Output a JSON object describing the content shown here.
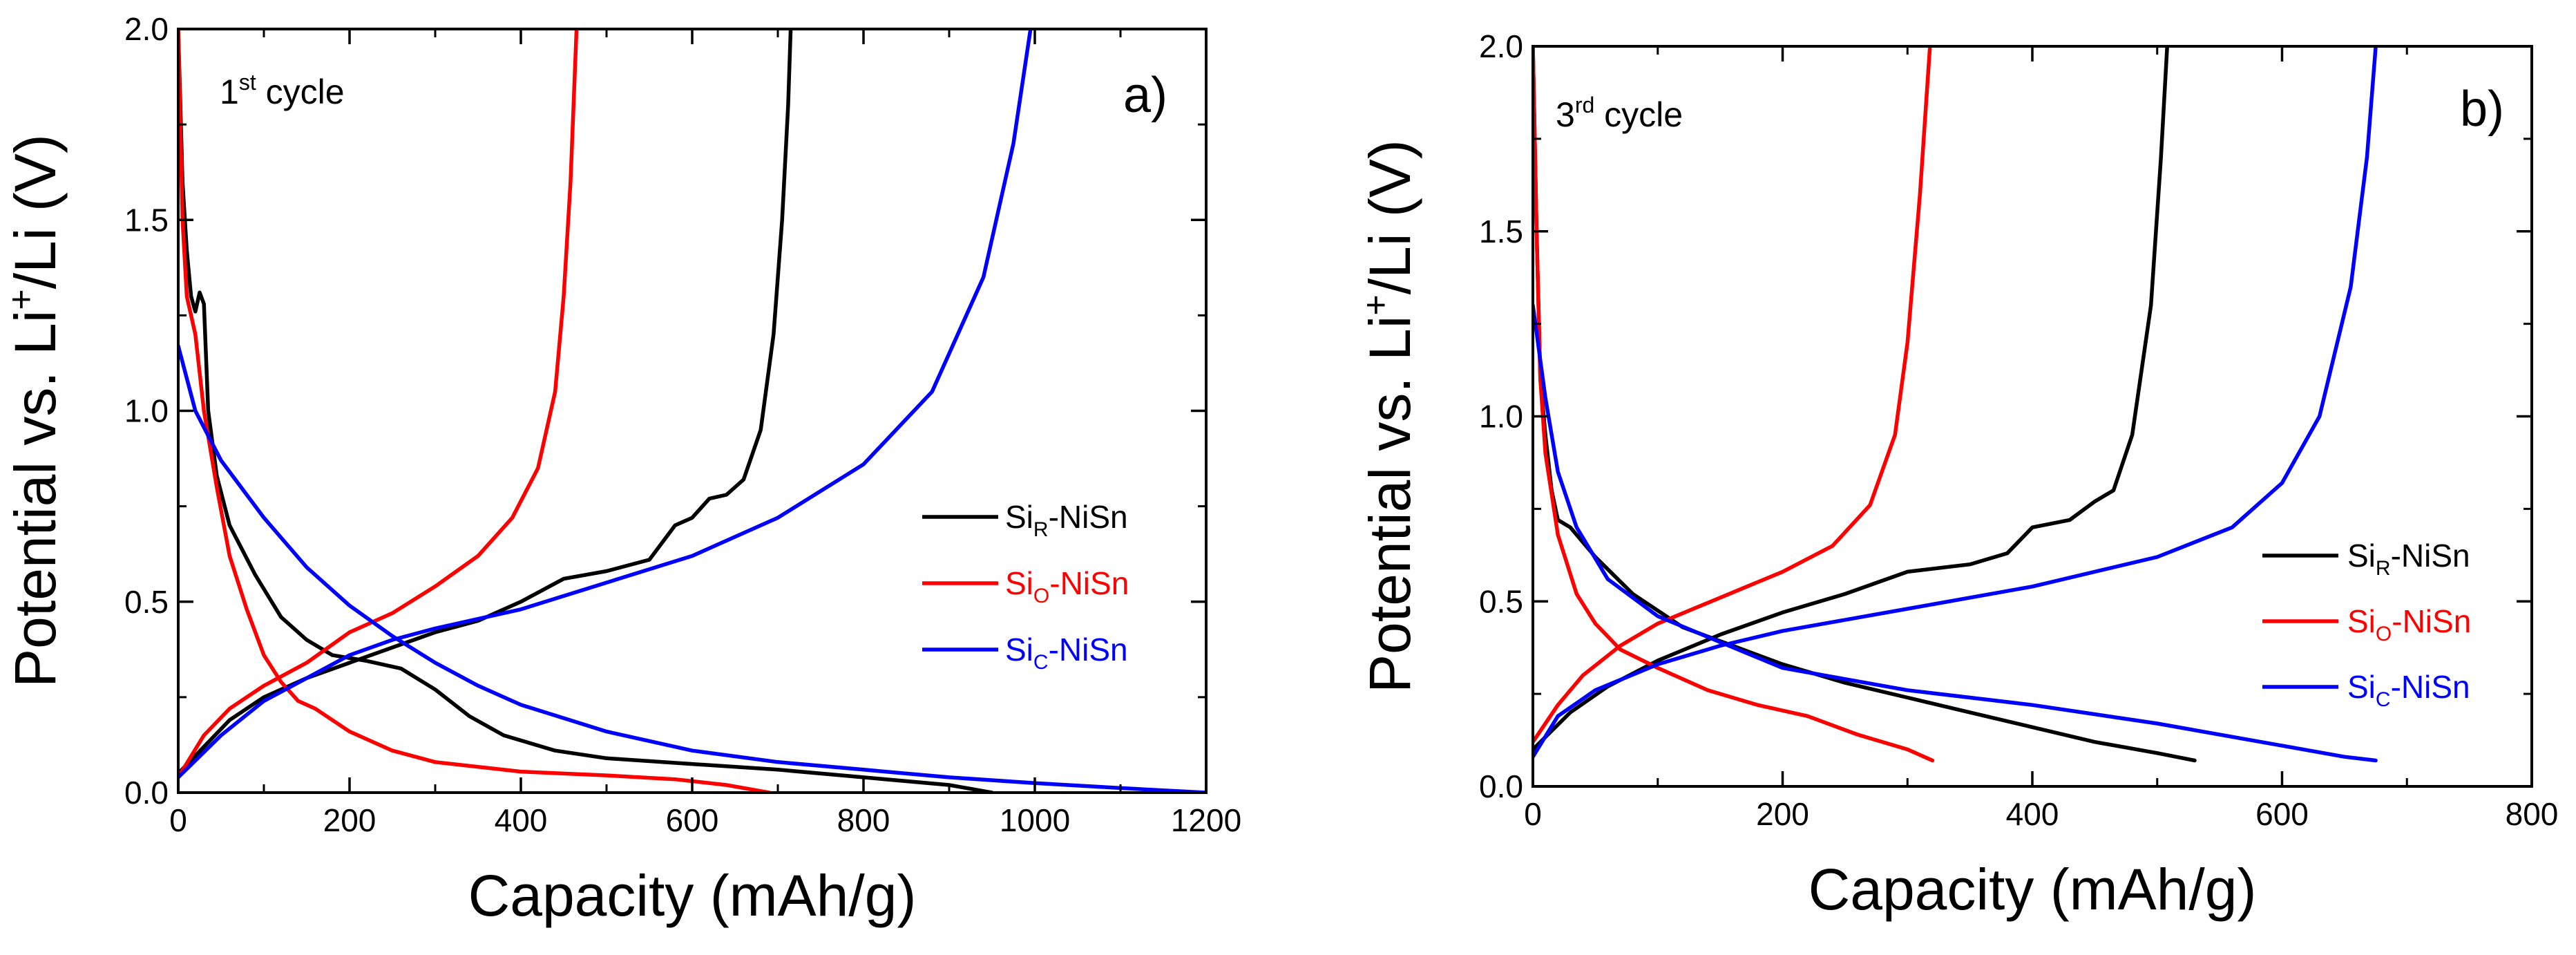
{
  "chart_data": [
    {
      "type": "line",
      "panel_label": "a)",
      "cycle_label": {
        "base": "1",
        "sup": "st",
        "rest": " cycle"
      },
      "xlabel": "Capacity (mAh/g)",
      "ylabel": {
        "pre": "Potential vs. Li",
        "sup": "+",
        "post": "/Li (V)"
      },
      "xlim": [
        0,
        1200
      ],
      "ylim": [
        0,
        2.0
      ],
      "xticks": [
        0,
        200,
        400,
        600,
        800,
        1000,
        1200
      ],
      "yticks": [
        0.0,
        0.5,
        1.0,
        1.5,
        2.0
      ],
      "ytick_labels": [
        "0.0",
        "0.5",
        "1.0",
        "1.5",
        "2.0"
      ],
      "legend_position": "center-right",
      "series": [
        {
          "name": "SiR-NiSn",
          "label_base": "Si",
          "label_sub": "R",
          "label_rest": "-NiSn",
          "color": "#000000",
          "discharge": [
            [
              0,
              2.0
            ],
            [
              5,
              1.6
            ],
            [
              10,
              1.42
            ],
            [
              15,
              1.3
            ],
            [
              20,
              1.26
            ],
            [
              25,
              1.31
            ],
            [
              30,
              1.28
            ],
            [
              35,
              1.0
            ],
            [
              45,
              0.83
            ],
            [
              60,
              0.7
            ],
            [
              90,
              0.57
            ],
            [
              120,
              0.46
            ],
            [
              150,
              0.4
            ],
            [
              180,
              0.36
            ],
            [
              220,
              0.345
            ],
            [
              260,
              0.325
            ],
            [
              300,
              0.27
            ],
            [
              340,
              0.2
            ],
            [
              380,
              0.15
            ],
            [
              440,
              0.11
            ],
            [
              500,
              0.09
            ],
            [
              600,
              0.075
            ],
            [
              700,
              0.06
            ],
            [
              800,
              0.04
            ],
            [
              900,
              0.02
            ],
            [
              950,
              0.0
            ]
          ],
          "charge": [
            [
              0,
              0.05
            ],
            [
              30,
              0.12
            ],
            [
              60,
              0.19
            ],
            [
              100,
              0.25
            ],
            [
              150,
              0.3
            ],
            [
              200,
              0.34
            ],
            [
              250,
              0.38
            ],
            [
              300,
              0.42
            ],
            [
              350,
              0.45
            ],
            [
              400,
              0.5
            ],
            [
              450,
              0.56
            ],
            [
              500,
              0.58
            ],
            [
              550,
              0.61
            ],
            [
              580,
              0.7
            ],
            [
              600,
              0.72
            ],
            [
              620,
              0.77
            ],
            [
              640,
              0.78
            ],
            [
              660,
              0.82
            ],
            [
              680,
              0.95
            ],
            [
              695,
              1.2
            ],
            [
              705,
              1.5
            ],
            [
              712,
              1.8
            ],
            [
              715,
              2.0
            ]
          ]
        },
        {
          "name": "SiO-NiSn",
          "label_base": "Si",
          "label_sub": "O",
          "label_rest": "-NiSn",
          "color": "#ff0000",
          "discharge": [
            [
              0,
              2.0
            ],
            [
              5,
              1.5
            ],
            [
              10,
              1.3
            ],
            [
              20,
              1.2
            ],
            [
              30,
              1.0
            ],
            [
              45,
              0.8
            ],
            [
              60,
              0.62
            ],
            [
              80,
              0.48
            ],
            [
              100,
              0.36
            ],
            [
              120,
              0.29
            ],
            [
              140,
              0.24
            ],
            [
              160,
              0.22
            ],
            [
              200,
              0.16
            ],
            [
              250,
              0.11
            ],
            [
              300,
              0.08
            ],
            [
              400,
              0.055
            ],
            [
              500,
              0.045
            ],
            [
              580,
              0.035
            ],
            [
              640,
              0.02
            ],
            [
              690,
              0.0
            ]
          ],
          "charge": [
            [
              0,
              0.04
            ],
            [
              30,
              0.15
            ],
            [
              60,
              0.22
            ],
            [
              100,
              0.28
            ],
            [
              150,
              0.34
            ],
            [
              200,
              0.42
            ],
            [
              250,
              0.47
            ],
            [
              300,
              0.54
            ],
            [
              350,
              0.62
            ],
            [
              390,
              0.72
            ],
            [
              420,
              0.85
            ],
            [
              440,
              1.05
            ],
            [
              450,
              1.3
            ],
            [
              458,
              1.6
            ],
            [
              465,
              2.0
            ]
          ]
        },
        {
          "name": "SiC-NiSn",
          "label_base": "Si",
          "label_sub": "C",
          "label_rest": "-NiSn",
          "color": "#0000ff",
          "discharge": [
            [
              0,
              1.17
            ],
            [
              20,
              1.0
            ],
            [
              50,
              0.87
            ],
            [
              100,
              0.72
            ],
            [
              150,
              0.59
            ],
            [
              200,
              0.49
            ],
            [
              250,
              0.41
            ],
            [
              300,
              0.34
            ],
            [
              350,
              0.28
            ],
            [
              400,
              0.23
            ],
            [
              500,
              0.16
            ],
            [
              600,
              0.11
            ],
            [
              700,
              0.08
            ],
            [
              800,
              0.06
            ],
            [
              900,
              0.04
            ],
            [
              1000,
              0.025
            ],
            [
              1100,
              0.012
            ],
            [
              1200,
              0.0
            ]
          ],
          "charge": [
            [
              0,
              0.04
            ],
            [
              50,
              0.15
            ],
            [
              100,
              0.24
            ],
            [
              150,
              0.3
            ],
            [
              200,
              0.36
            ],
            [
              250,
              0.4
            ],
            [
              300,
              0.43
            ],
            [
              400,
              0.48
            ],
            [
              500,
              0.55
            ],
            [
              600,
              0.62
            ],
            [
              700,
              0.72
            ],
            [
              800,
              0.86
            ],
            [
              880,
              1.05
            ],
            [
              940,
              1.35
            ],
            [
              975,
              1.7
            ],
            [
              995,
              2.0
            ]
          ]
        }
      ]
    },
    {
      "type": "line",
      "panel_label": "b)",
      "cycle_label": {
        "base": "3",
        "sup": "rd",
        "rest": " cycle"
      },
      "xlabel": "Capacity (mAh/g)",
      "ylabel": {
        "pre": "Potential vs. Li",
        "sup": "+",
        "post": "/Li (V)"
      },
      "xlim": [
        0,
        800
      ],
      "ylim": [
        0,
        2.0
      ],
      "xticks": [
        0,
        200,
        400,
        600,
        800
      ],
      "yticks": [
        0.0,
        0.5,
        1.0,
        1.5,
        2.0
      ],
      "ytick_labels": [
        "0.0",
        "0.5",
        "1.0",
        "1.5",
        "2.0"
      ],
      "legend_position": "lower-right",
      "series": [
        {
          "name": "SiR-NiSn",
          "label_base": "Si",
          "label_sub": "R",
          "label_rest": "-NiSn",
          "color": "#000000",
          "discharge": [
            [
              0,
              2.0
            ],
            [
              3,
              1.5
            ],
            [
              6,
              1.1
            ],
            [
              10,
              0.95
            ],
            [
              15,
              0.8
            ],
            [
              20,
              0.72
            ],
            [
              30,
              0.7
            ],
            [
              50,
              0.62
            ],
            [
              80,
              0.52
            ],
            [
              120,
              0.43
            ],
            [
              160,
              0.38
            ],
            [
              200,
              0.33
            ],
            [
              250,
              0.28
            ],
            [
              300,
              0.24
            ],
            [
              350,
              0.2
            ],
            [
              400,
              0.16
            ],
            [
              450,
              0.12
            ],
            [
              500,
              0.09
            ],
            [
              530,
              0.07
            ]
          ],
          "charge": [
            [
              0,
              0.1
            ],
            [
              30,
              0.2
            ],
            [
              60,
              0.27
            ],
            [
              100,
              0.34
            ],
            [
              150,
              0.41
            ],
            [
              200,
              0.47
            ],
            [
              250,
              0.52
            ],
            [
              300,
              0.58
            ],
            [
              350,
              0.6
            ],
            [
              380,
              0.63
            ],
            [
              400,
              0.7
            ],
            [
              430,
              0.72
            ],
            [
              450,
              0.77
            ],
            [
              465,
              0.8
            ],
            [
              480,
              0.95
            ],
            [
              495,
              1.3
            ],
            [
              503,
              1.7
            ],
            [
              508,
              2.0
            ]
          ]
        },
        {
          "name": "SiO-NiSn",
          "label_base": "Si",
          "label_sub": "O",
          "label_rest": "-NiSn",
          "color": "#ff0000",
          "discharge": [
            [
              0,
              2.0
            ],
            [
              3,
              1.5
            ],
            [
              6,
              1.1
            ],
            [
              10,
              0.9
            ],
            [
              20,
              0.68
            ],
            [
              35,
              0.52
            ],
            [
              50,
              0.44
            ],
            [
              70,
              0.37
            ],
            [
              100,
              0.32
            ],
            [
              140,
              0.26
            ],
            [
              180,
              0.22
            ],
            [
              220,
              0.19
            ],
            [
              260,
              0.14
            ],
            [
              300,
              0.1
            ],
            [
              320,
              0.07
            ]
          ],
          "charge": [
            [
              0,
              0.12
            ],
            [
              20,
              0.22
            ],
            [
              40,
              0.3
            ],
            [
              70,
              0.38
            ],
            [
              100,
              0.44
            ],
            [
              150,
              0.51
            ],
            [
              200,
              0.58
            ],
            [
              240,
              0.65
            ],
            [
              270,
              0.76
            ],
            [
              290,
              0.95
            ],
            [
              300,
              1.2
            ],
            [
              310,
              1.6
            ],
            [
              318,
              2.0
            ]
          ]
        },
        {
          "name": "SiC-NiSn",
          "label_base": "Si",
          "label_sub": "C",
          "label_rest": "-NiSn",
          "color": "#0000ff",
          "discharge": [
            [
              0,
              1.3
            ],
            [
              10,
              1.05
            ],
            [
              20,
              0.85
            ],
            [
              35,
              0.7
            ],
            [
              60,
              0.56
            ],
            [
              100,
              0.46
            ],
            [
              150,
              0.39
            ],
            [
              200,
              0.32
            ],
            [
              250,
              0.29
            ],
            [
              300,
              0.26
            ],
            [
              400,
              0.22
            ],
            [
              500,
              0.17
            ],
            [
              600,
              0.11
            ],
            [
              650,
              0.08
            ],
            [
              675,
              0.07
            ]
          ],
          "charge": [
            [
              0,
              0.08
            ],
            [
              20,
              0.19
            ],
            [
              50,
              0.26
            ],
            [
              100,
              0.33
            ],
            [
              150,
              0.38
            ],
            [
              200,
              0.42
            ],
            [
              300,
              0.48
            ],
            [
              400,
              0.54
            ],
            [
              500,
              0.62
            ],
            [
              560,
              0.7
            ],
            [
              600,
              0.82
            ],
            [
              630,
              1.0
            ],
            [
              655,
              1.35
            ],
            [
              668,
              1.7
            ],
            [
              675,
              2.0
            ]
          ]
        }
      ]
    }
  ]
}
